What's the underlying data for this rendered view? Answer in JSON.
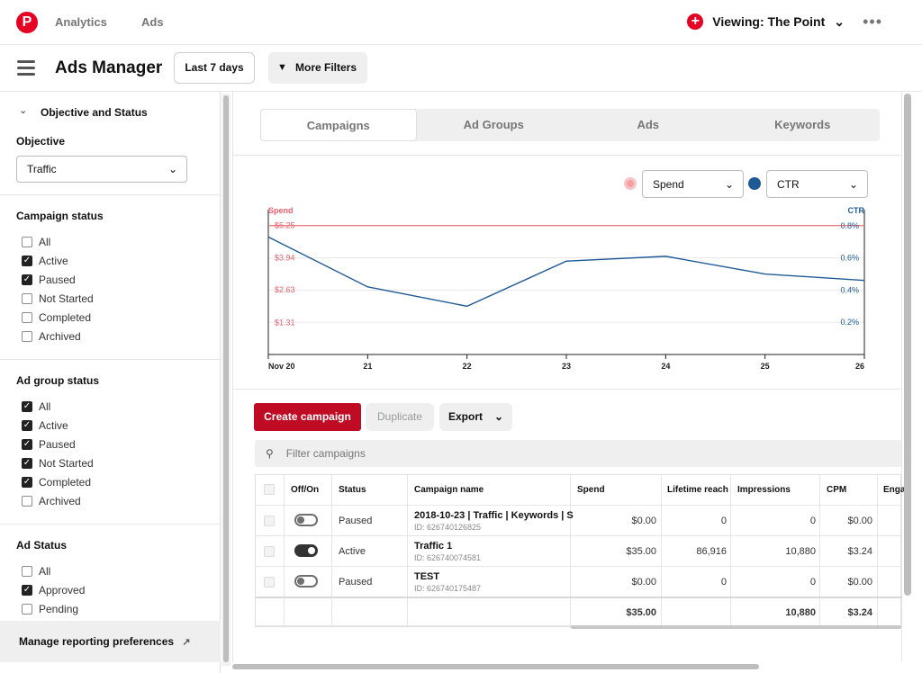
{
  "topnav": {
    "logo": "P",
    "links": [
      "Analytics",
      "Ads"
    ],
    "viewing": "Viewing: The Point",
    "more": "•••"
  },
  "subbar": {
    "title": "Ads Manager",
    "date_range": "Last 7 days",
    "more_filters": "More Filters"
  },
  "sidebar": {
    "section_title": "Objective and Status",
    "objective_label": "Objective",
    "objective_value": "Traffic",
    "campaign_status": {
      "label": "Campaign status",
      "items": [
        {
          "label": "All",
          "checked": false
        },
        {
          "label": "Active",
          "checked": true
        },
        {
          "label": "Paused",
          "checked": true
        },
        {
          "label": "Not Started",
          "checked": false
        },
        {
          "label": "Completed",
          "checked": false
        },
        {
          "label": "Archived",
          "checked": false
        }
      ]
    },
    "ad_group_status": {
      "label": "Ad group status",
      "items": [
        {
          "label": "All",
          "checked": true
        },
        {
          "label": "Active",
          "checked": true
        },
        {
          "label": "Paused",
          "checked": true
        },
        {
          "label": "Not Started",
          "checked": true
        },
        {
          "label": "Completed",
          "checked": true
        },
        {
          "label": "Archived",
          "checked": false
        }
      ]
    },
    "ad_status": {
      "label": "Ad Status",
      "items": [
        {
          "label": "All",
          "checked": false
        },
        {
          "label": "Approved",
          "checked": true
        },
        {
          "label": "Pending",
          "checked": false
        }
      ]
    },
    "manage_prefs": "Manage reporting preferences"
  },
  "tabs": [
    {
      "label": "Campaigns",
      "active": true
    },
    {
      "label": "Ad Groups",
      "active": false
    },
    {
      "label": "Ads",
      "active": false
    },
    {
      "label": "Keywords",
      "active": false
    }
  ],
  "metric_selects": {
    "left": "Spend",
    "right": "CTR",
    "left_color": "#f08080",
    "right_color": "#1f5a96"
  },
  "chart_data": {
    "type": "line",
    "x": [
      "Nov 20",
      "21",
      "22",
      "23",
      "24",
      "25",
      "26"
    ],
    "left_axis": {
      "title": "Spend",
      "ticks": [
        "$5.25",
        "$3.94",
        "$2.63",
        "$1.31"
      ],
      "color": "#e8606c"
    },
    "right_axis": {
      "title": "CTR",
      "ticks": [
        "0.8%",
        "0.6%",
        "0.4%",
        "0.2%"
      ],
      "color": "#1f5a96",
      "ylim": [
        0,
        0.9
      ]
    },
    "series": [
      {
        "name": "Spend",
        "axis": "left",
        "color": "#f08080",
        "values": [
          5.25,
          5.25,
          5.25,
          5.25,
          5.25,
          5.25,
          5.25
        ]
      },
      {
        "name": "CTR",
        "axis": "right",
        "color": "#1f5a96",
        "values": [
          0.73,
          0.42,
          0.3,
          0.58,
          0.61,
          0.5,
          0.46
        ]
      }
    ],
    "ylim_left": [
      0,
      5.9
    ]
  },
  "actions": {
    "create": "Create campaign",
    "duplicate": "Duplicate",
    "export": "Export",
    "filter_placeholder": "Filter campaigns"
  },
  "table": {
    "headers": [
      "Off/On",
      "Status",
      "Campaign name",
      "Spend",
      "Lifetime reach",
      "Impressions",
      "CPM",
      "Enga"
    ],
    "rows": [
      {
        "on": false,
        "status": "Paused",
        "name": "2018-10-23 | Traffic | Keywords | S",
        "id": "ID: 626740126825",
        "spend": "$0.00",
        "reach": "0",
        "impressions": "0",
        "cpm": "$0.00"
      },
      {
        "on": true,
        "status": "Active",
        "name": "Traffic 1",
        "id": "ID: 626740074581",
        "spend": "$35.00",
        "reach": "86,916",
        "impressions": "10,880",
        "cpm": "$3.24"
      },
      {
        "on": false,
        "status": "Paused",
        "name": "TEST",
        "id": "ID: 626740175487",
        "spend": "$0.00",
        "reach": "0",
        "impressions": "0",
        "cpm": "$0.00"
      }
    ],
    "totals": {
      "spend": "$35.00",
      "impressions": "10,880",
      "cpm": "$3.24"
    }
  }
}
